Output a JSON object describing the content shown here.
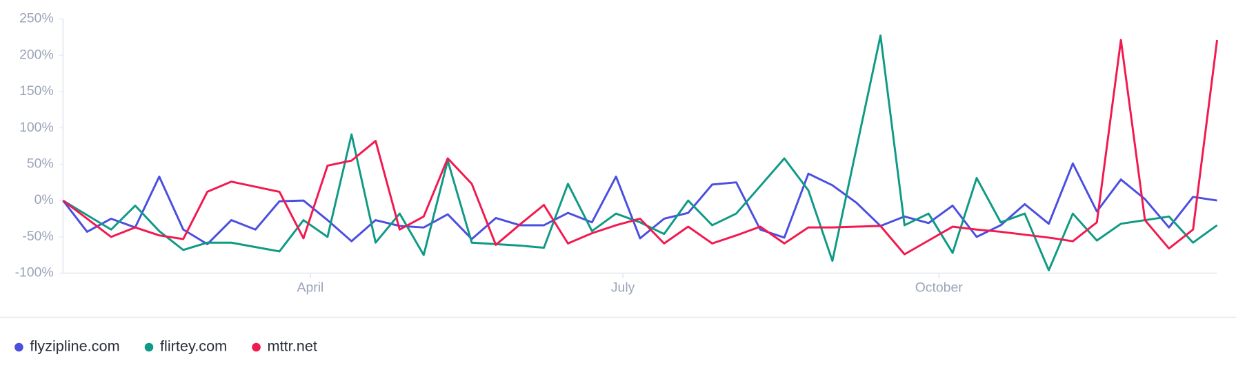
{
  "chart_data": {
    "type": "line",
    "x": [
      19,
      26,
      33,
      40,
      47,
      54,
      61,
      68,
      75,
      82,
      89,
      96,
      103,
      110,
      117,
      124,
      131,
      138,
      145,
      152,
      159,
      166,
      173,
      180,
      187,
      194,
      201,
      208,
      215,
      222,
      229,
      236,
      243,
      250,
      257,
      264,
      271,
      278,
      285,
      292,
      299,
      306,
      313,
      320,
      327,
      334,
      341,
      348,
      355
    ],
    "xlim": [
      19,
      355
    ],
    "xticks": [
      {
        "value": 91,
        "label": "April"
      },
      {
        "value": 182,
        "label": "July"
      },
      {
        "value": 274,
        "label": "October"
      }
    ],
    "ylim": [
      -100,
      250
    ],
    "yticks": [
      {
        "value": -100,
        "label": "-100%"
      },
      {
        "value": -50,
        "label": "-50%"
      },
      {
        "value": 0,
        "label": "0%"
      },
      {
        "value": 50,
        "label": "50%"
      },
      {
        "value": 100,
        "label": "100%"
      },
      {
        "value": 150,
        "label": "150%"
      },
      {
        "value": 200,
        "label": "200%"
      },
      {
        "value": 250,
        "label": "250%"
      }
    ],
    "grid": false,
    "legend": "bottom-left",
    "series": [
      {
        "name": "flyzipline.com",
        "color": "#4a4fe0",
        "values": [
          0,
          -43,
          -25,
          -37,
          33,
          -40,
          -60,
          -27,
          -40,
          -1,
          0,
          -27,
          -56,
          -27,
          -35,
          -37,
          -19,
          -53,
          -24,
          -34,
          -34,
          -17,
          -30,
          33,
          -52,
          -25,
          -17,
          22,
          25,
          -40,
          -51,
          37,
          21,
          -3,
          -35,
          -22,
          -31,
          -7,
          -50,
          -34,
          -5,
          -32,
          51,
          -15,
          29,
          2,
          -37,
          5,
          0
        ]
      },
      {
        "name": "flirtey.com",
        "color": "#0f9a86",
        "values": [
          0,
          -20,
          -40,
          -7,
          -42,
          -68,
          -58,
          -58,
          -64,
          -70,
          -27,
          -50,
          91,
          -58,
          -18,
          -75,
          55,
          -58,
          -60,
          -62,
          -65,
          23,
          -42,
          -18,
          -30,
          -46,
          0,
          -34,
          -18,
          20,
          58,
          14,
          -83,
          72,
          227,
          -34,
          -18,
          -72,
          31,
          -30,
          -18,
          -96,
          -18,
          -55,
          -32,
          -27,
          -22,
          -58,
          -34
        ]
      },
      {
        "name": "mttr.net",
        "color": "#f2194f",
        "values": [
          0,
          -25,
          -50,
          -37,
          -48,
          -53,
          12,
          26,
          19,
          12,
          -52,
          48,
          55,
          82,
          -40,
          -22,
          58,
          23,
          -61,
          -33,
          -6,
          -59,
          -45,
          -34,
          -25,
          -59,
          -36,
          -59,
          -48,
          -36,
          -59,
          -37,
          -37,
          -36,
          -35,
          -74,
          -55,
          -36,
          -40,
          -43,
          -47,
          -51,
          -56,
          -30,
          221,
          -27,
          -66,
          -40,
          221
        ]
      }
    ]
  }
}
